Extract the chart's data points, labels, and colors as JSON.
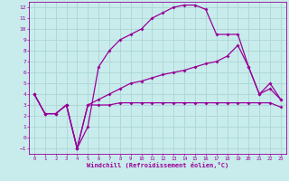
{
  "title": "",
  "xlabel": "Windchill (Refroidissement éolien,°C)",
  "ylabel": "",
  "background_color": "#c8ecec",
  "grid_color": "#b0d8d8",
  "line_color": "#990099",
  "xmin": 0,
  "xmax": 23,
  "ymin": -1,
  "ymax": 12,
  "hours": [
    0,
    1,
    2,
    3,
    4,
    5,
    6,
    7,
    8,
    9,
    10,
    11,
    12,
    13,
    14,
    15,
    16,
    17,
    18,
    19,
    20,
    21,
    22,
    23
  ],
  "line1": [
    4,
    2.2,
    2.2,
    3,
    -1,
    1,
    6.5,
    8,
    9,
    9.5,
    10,
    11,
    11.5,
    12,
    12.2,
    12.2,
    11.8,
    9.5,
    9.5,
    9.5,
    6.5,
    4,
    5,
    3.5
  ],
  "line2": [
    4,
    2.2,
    2.2,
    3,
    -1,
    3,
    3,
    3,
    3.2,
    3.2,
    3.2,
    3.2,
    3.2,
    3.2,
    3.2,
    3.2,
    3.2,
    3.2,
    3.2,
    3.2,
    3.2,
    3.2,
    3.2,
    2.8
  ],
  "line3": [
    4,
    2.2,
    2.2,
    3,
    -1,
    3,
    3.5,
    4,
    4.5,
    5,
    5.2,
    5.5,
    5.8,
    6,
    6.2,
    6.5,
    6.8,
    7,
    7.5,
    8.5,
    6.5,
    4,
    4.5,
    3.5
  ]
}
